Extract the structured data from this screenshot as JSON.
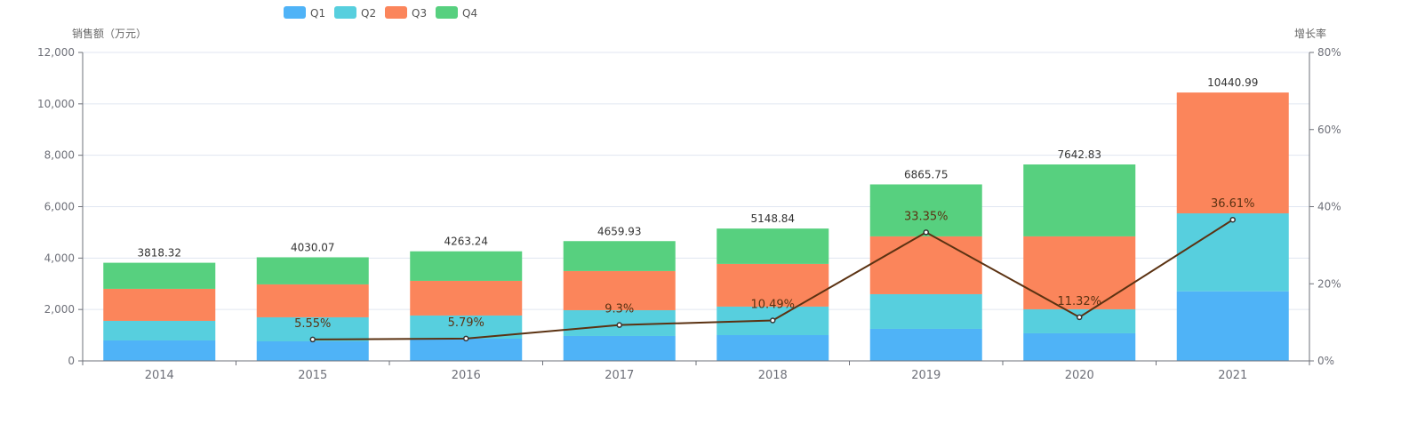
{
  "chart_data": {
    "type": "bar",
    "stacked": true,
    "categories": [
      "2014",
      "2015",
      "2016",
      "2017",
      "2018",
      "2019",
      "2020",
      "2021"
    ],
    "series": [
      {
        "name": "Q1",
        "color": "#4fb3f7",
        "values": [
          796,
          761,
          865,
          969,
          1003,
          1246,
          1073,
          2707
        ]
      },
      {
        "name": "Q2",
        "color": "#57cfde",
        "values": [
          761,
          935,
          900,
          1003,
          1108,
          1349,
          934,
          3033
        ]
      },
      {
        "name": "Q3",
        "color": "#fb855b",
        "values": [
          1246,
          1280,
          1349,
          1523,
          1661,
          2249,
          2837,
          4701
        ]
      },
      {
        "name": "Q4",
        "color": "#57d07f",
        "values": [
          1015.32,
          1054.07,
          1149.24,
          1164.93,
          1376.84,
          2021.75,
          2798.83,
          0
        ]
      }
    ],
    "totals": [
      "3818.32",
      "4030.07",
      "4263.24",
      "4659.93",
      "5148.84",
      "6865.75",
      "7642.83",
      "10440.99"
    ],
    "growth_line": {
      "color": "#5b3212",
      "categories": [
        "2015",
        "2016",
        "2017",
        "2018",
        "2019",
        "2020",
        "2021"
      ],
      "values": [
        5.55,
        5.79,
        9.3,
        10.49,
        33.35,
        11.32,
        36.61
      ],
      "labels": [
        "5.55%",
        "5.79%",
        "9.3%",
        "10.49%",
        "33.35%",
        "11.32%",
        "36.61%"
      ]
    },
    "ylabel": "销售额（万元）",
    "ylabel_right": "增长率",
    "ylim": [
      0,
      12000
    ],
    "yticks": [
      "0",
      "2,000",
      "4,000",
      "6,000",
      "8,000",
      "10,000",
      "12,000"
    ],
    "ylim_right": [
      0,
      80
    ],
    "yticks_right": [
      "0%",
      "20%",
      "40%",
      "60%",
      "80%"
    ],
    "grid": true,
    "legend_position": "top-center"
  }
}
